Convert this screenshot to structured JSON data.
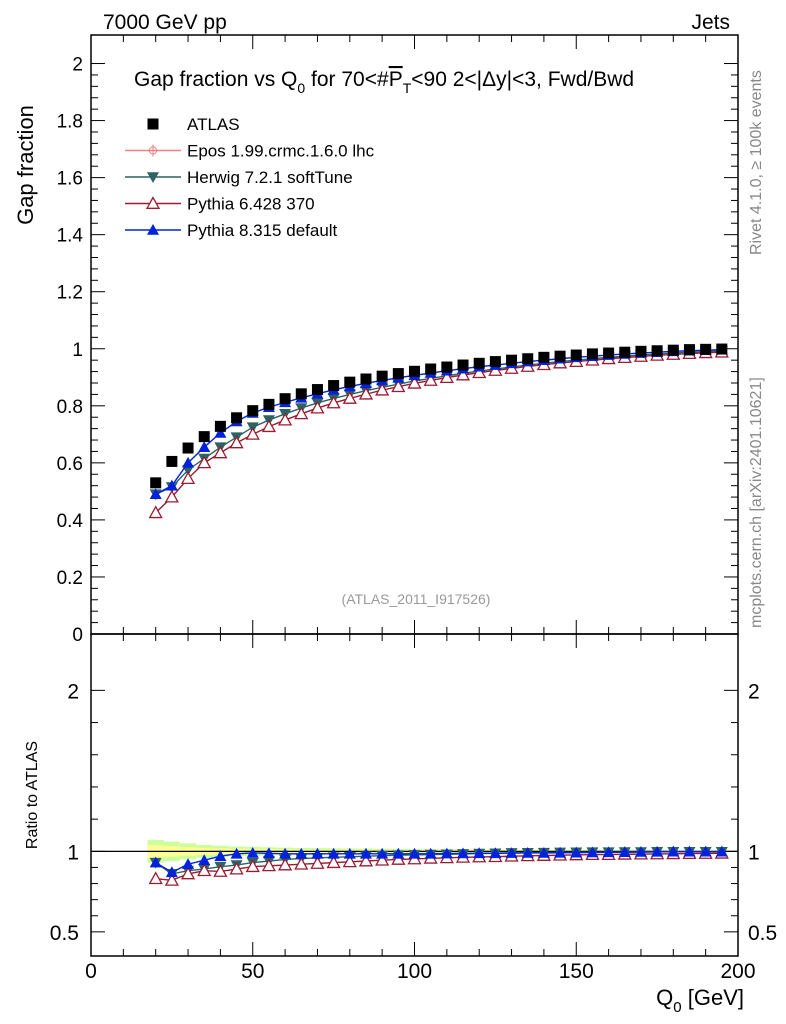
{
  "header": {
    "left": "7000 GeV pp",
    "right": "Jets"
  },
  "side_labels": {
    "rivet": "Rivet 4.1.0, ≥ 100k events",
    "mcplots": "mcplots.cern.ch [arXiv:2401.10621]"
  },
  "watermark": "(ATLAS_2011_I917526)",
  "chart_data": [
    {
      "panel": "main",
      "type": "scatter",
      "title_parts": {
        "pre": "Gap fraction vs Q",
        "sub0": "0",
        "mid": " for 70<#",
        "p": "P",
        "subT": "T",
        "post": "<90  2<|Δy|<3, Fwd/Bwd"
      },
      "ylabel": "Gap fraction",
      "xlim": [
        0,
        200
      ],
      "ylim": [
        0,
        2.1
      ],
      "x_ticks": [
        0,
        50,
        100,
        150,
        200
      ],
      "y_ticks": [
        0,
        0.2,
        0.4,
        0.6,
        0.8,
        1,
        1.2,
        1.4,
        1.6,
        1.8,
        2
      ],
      "y_tick_labels": [
        "0",
        "0.2",
        "0.4",
        "0.6",
        "0.8",
        "1",
        "1.2",
        "1.4",
        "1.6",
        "1.8",
        "2"
      ],
      "legend_position": "top-left",
      "x": [
        20,
        25,
        30,
        35,
        40,
        45,
        50,
        55,
        60,
        65,
        70,
        75,
        80,
        85,
        90,
        95,
        100,
        105,
        110,
        115,
        120,
        125,
        130,
        135,
        140,
        145,
        150,
        155,
        160,
        165,
        170,
        175,
        180,
        185,
        190,
        195
      ],
      "series": [
        {
          "name": "ATLAS",
          "marker": "square",
          "color": "#000000",
          "values": [
            0.53,
            0.605,
            0.652,
            0.692,
            0.728,
            0.758,
            0.783,
            0.805,
            0.825,
            0.842,
            0.857,
            0.871,
            0.883,
            0.894,
            0.904,
            0.913,
            0.921,
            0.929,
            0.936,
            0.943,
            0.949,
            0.955,
            0.96,
            0.965,
            0.97,
            0.974,
            0.978,
            0.982,
            0.985,
            0.988,
            0.991,
            0.993,
            0.995,
            0.997,
            0.998,
            0.999
          ]
        },
        {
          "name": "Epos 1.99.crmc.1.6.0 lhc",
          "marker": "cross",
          "color": "#f08080",
          "values": []
        },
        {
          "name": "Herwig 7.2.1 softTune",
          "marker": "triangle-down",
          "color": "#2f6262",
          "values": [
            0.49,
            0.515,
            0.575,
            0.615,
            0.655,
            0.69,
            0.725,
            0.75,
            0.772,
            0.792,
            0.81,
            0.826,
            0.84,
            0.853,
            0.865,
            0.876,
            0.887,
            0.896,
            0.905,
            0.914,
            0.922,
            0.929,
            0.936,
            0.943,
            0.949,
            0.955,
            0.96,
            0.965,
            0.97,
            0.974,
            0.978,
            0.982,
            0.985,
            0.988,
            0.99,
            0.992
          ]
        },
        {
          "name": "Pythia 6.428 370",
          "marker": "triangle-open",
          "color": "#9b1b30",
          "values": [
            0.425,
            0.48,
            0.545,
            0.6,
            0.635,
            0.67,
            0.7,
            0.727,
            0.75,
            0.772,
            0.792,
            0.81,
            0.826,
            0.841,
            0.855,
            0.867,
            0.879,
            0.889,
            0.899,
            0.908,
            0.916,
            0.924,
            0.931,
            0.938,
            0.944,
            0.95,
            0.955,
            0.96,
            0.965,
            0.969,
            0.973,
            0.977,
            0.98,
            0.983,
            0.986,
            0.988
          ]
        },
        {
          "name": "Pythia 8.315 default",
          "marker": "triangle-up",
          "color": "#0022dd",
          "values": [
            0.49,
            0.52,
            0.6,
            0.655,
            0.705,
            0.745,
            0.775,
            0.795,
            0.812,
            0.828,
            0.842,
            0.856,
            0.868,
            0.879,
            0.889,
            0.898,
            0.907,
            0.915,
            0.923,
            0.93,
            0.937,
            0.943,
            0.949,
            0.955,
            0.96,
            0.965,
            0.97,
            0.974,
            0.978,
            0.982,
            0.985,
            0.988,
            0.991,
            0.993,
            0.995,
            0.997
          ]
        }
      ]
    },
    {
      "panel": "ratio",
      "type": "scatter",
      "ylabel": "Ratio to ATLAS",
      "xlabel_pre": "Q",
      "xlabel_sub": "0",
      "xlabel_post": " [GeV]",
      "xlim": [
        0,
        200
      ],
      "ylim": [
        0.35,
        2.35
      ],
      "x_ticks": [
        0,
        50,
        100,
        150,
        200
      ],
      "x_tick_labels": [
        "0",
        "50",
        "100",
        "150",
        "200"
      ],
      "y_ticks": [
        0.5,
        1,
        2
      ],
      "y_tick_labels": [
        "0.5",
        "1",
        "2"
      ],
      "band": {
        "color_inner": "#fdfd96",
        "color_outer": "#ccff99",
        "half_width": [
          0.07,
          0.06,
          0.05,
          0.04,
          0.035,
          0.03,
          0.028,
          0.025,
          0.023,
          0.021,
          0.02,
          0.019,
          0.018,
          0.017,
          0.016,
          0.015,
          0.014,
          0.013,
          0.012,
          0.012,
          0.011,
          0.011,
          0.01,
          0.01,
          0.01,
          0.009,
          0.009,
          0.009,
          0.008,
          0.008,
          0.008,
          0.008,
          0.007,
          0.007,
          0.007,
          0.007
        ]
      },
      "series": [
        {
          "name": "Herwig 7.2.1 softTune",
          "values": [
            0.93,
            0.86,
            0.88,
            0.89,
            0.905,
            0.915,
            0.93,
            0.94,
            0.95,
            0.955,
            0.96,
            0.963,
            0.966,
            0.97,
            0.973,
            0.976,
            0.978,
            0.98,
            0.982,
            0.984,
            0.986,
            0.988,
            0.99,
            0.991,
            0.992,
            0.993,
            0.994,
            0.995,
            0.995,
            0.996,
            0.996,
            0.997,
            0.997,
            0.997,
            0.997,
            0.997
          ]
        },
        {
          "name": "Pythia 6.428 370",
          "values": [
            0.83,
            0.82,
            0.86,
            0.88,
            0.875,
            0.89,
            0.905,
            0.91,
            0.915,
            0.92,
            0.925,
            0.93,
            0.935,
            0.94,
            0.945,
            0.95,
            0.953,
            0.957,
            0.96,
            0.963,
            0.965,
            0.967,
            0.97,
            0.972,
            0.974,
            0.976,
            0.978,
            0.98,
            0.98,
            0.982,
            0.983,
            0.984,
            0.985,
            0.986,
            0.987,
            0.988
          ]
        },
        {
          "name": "Pythia 8.315 default",
          "values": [
            0.93,
            0.87,
            0.92,
            0.945,
            0.97,
            0.985,
            0.99,
            0.988,
            0.985,
            0.985,
            0.985,
            0.985,
            0.985,
            0.985,
            0.985,
            0.985,
            0.985,
            0.985,
            0.986,
            0.987,
            0.988,
            0.988,
            0.989,
            0.99,
            0.99,
            0.991,
            0.992,
            0.993,
            0.994,
            0.995,
            0.996,
            0.997,
            0.998,
            0.998,
            0.998,
            0.998
          ]
        }
      ]
    }
  ]
}
